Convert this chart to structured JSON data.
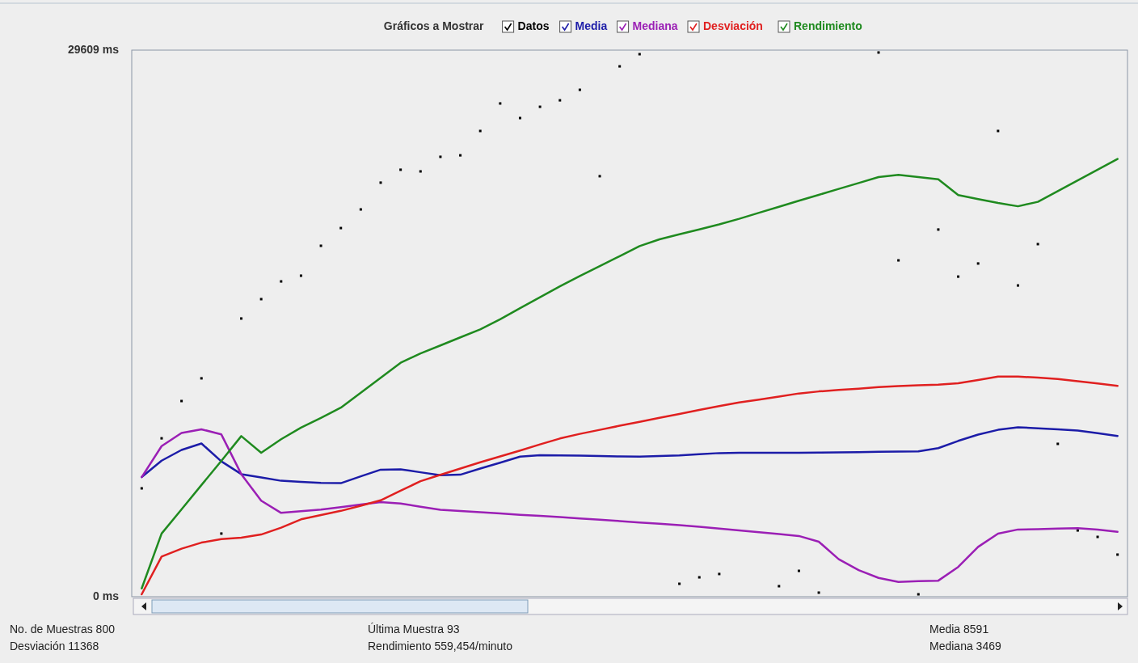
{
  "chart_data": {
    "type": "line",
    "legend_title": "Gráficos a Mostrar",
    "legend": "top",
    "categories": [
      null,
      null,
      null,
      null,
      null,
      null,
      null,
      null,
      null,
      null,
      null,
      null,
      null,
      null,
      null,
      null,
      null,
      null,
      null,
      null,
      null,
      null,
      null,
      null,
      null,
      null,
      null,
      null,
      null,
      null,
      null,
      null,
      null,
      null,
      null,
      null,
      null,
      null,
      null,
      null,
      null,
      null,
      null,
      null,
      null,
      null,
      null,
      null,
      null,
      null
    ],
    "ylim": [
      0,
      29609
    ],
    "yticks": [
      {
        "value": 29609,
        "label": "29609 ms"
      },
      {
        "value": 0,
        "label": "0 ms"
      }
    ],
    "tick_labels": "y",
    "series": [
      {
        "name": "Datos",
        "type": "scatter",
        "marker": "square",
        "color": "#000000",
        "values": [
          5870,
          8580,
          10600,
          11830,
          3420,
          15070,
          16120,
          17080,
          17390,
          19010,
          19970,
          20980,
          22430,
          23130,
          23040,
          23830,
          23910,
          25230,
          26720,
          25930,
          26540,
          26890,
          27460,
          22780,
          28730,
          29390,
          null,
          700,
          1050,
          1230,
          null,
          null,
          570,
          1400,
          220,
          null,
          null,
          29480,
          18220,
          130,
          19890,
          17340,
          18050,
          25230,
          16860,
          19100,
          8280,
          3590,
          3240,
          2280
        ]
      },
      {
        "name": "Media",
        "color": "#1c1ca8",
        "values": [
          6480,
          7370,
          7950,
          8300,
          7330,
          6640,
          6460,
          6280,
          6220,
          6170,
          6150,
          6520,
          6880,
          6900,
          6740,
          6580,
          6610,
          6940,
          7260,
          7590,
          7660,
          7650,
          7640,
          7620,
          7600,
          7590,
          7620,
          7650,
          7720,
          7780,
          7800,
          7800,
          7800,
          7800,
          7810,
          7820,
          7830,
          7850,
          7860,
          7870,
          8050,
          8440,
          8780,
          9040,
          9180,
          9120,
          9070,
          9000,
          8860,
          8710
        ]
      },
      {
        "name": "Mediana",
        "color": "#9b1fb5",
        "values": [
          6480,
          8160,
          8870,
          9070,
          8790,
          6640,
          5200,
          4540,
          4630,
          4720,
          4850,
          4990,
          5120,
          5050,
          4870,
          4710,
          4640,
          4580,
          4510,
          4440,
          4380,
          4310,
          4240,
          4170,
          4100,
          4020,
          3950,
          3880,
          3790,
          3690,
          3590,
          3490,
          3390,
          3290,
          2980,
          2030,
          1440,
          1020,
          800,
          840,
          870,
          1610,
          2700,
          3420,
          3640,
          3660,
          3690,
          3710,
          3640,
          3510
        ]
      },
      {
        "name": "Desviación",
        "color": "#e02020",
        "values": [
          130,
          2170,
          2600,
          2930,
          3120,
          3200,
          3370,
          3740,
          4190,
          4420,
          4650,
          4930,
          5220,
          5740,
          6260,
          6600,
          6940,
          7280,
          7600,
          7920,
          8250,
          8570,
          8820,
          9040,
          9260,
          9470,
          9690,
          9900,
          10120,
          10330,
          10520,
          10680,
          10840,
          11010,
          11120,
          11200,
          11270,
          11350,
          11410,
          11450,
          11490,
          11560,
          11740,
          11920,
          11920,
          11870,
          11790,
          11670,
          11550,
          11420
        ]
      },
      {
        "name": "Rendimiento",
        "color": "#1f8a1f",
        "values": [
          450,
          3420,
          4730,
          6050,
          7360,
          8700,
          7800,
          8530,
          9160,
          9690,
          10240,
          11050,
          11860,
          12670,
          13180,
          13610,
          14050,
          14480,
          15030,
          15630,
          16220,
          16810,
          17370,
          17910,
          18450,
          18990,
          19360,
          19630,
          19900,
          20170,
          20470,
          20800,
          21120,
          21450,
          21770,
          22090,
          22410,
          22730,
          22850,
          22730,
          22610,
          21760,
          21540,
          21330,
          21150,
          21390,
          21970,
          22550,
          23130,
          23710
        ]
      }
    ],
    "annotations": [
      "No. de Muestras 800",
      "Última Muestra 93",
      "Media 8591",
      "Desviación 11368",
      "Rendimiento 559,454/minuto",
      "Mediana 3469"
    ]
  }
}
